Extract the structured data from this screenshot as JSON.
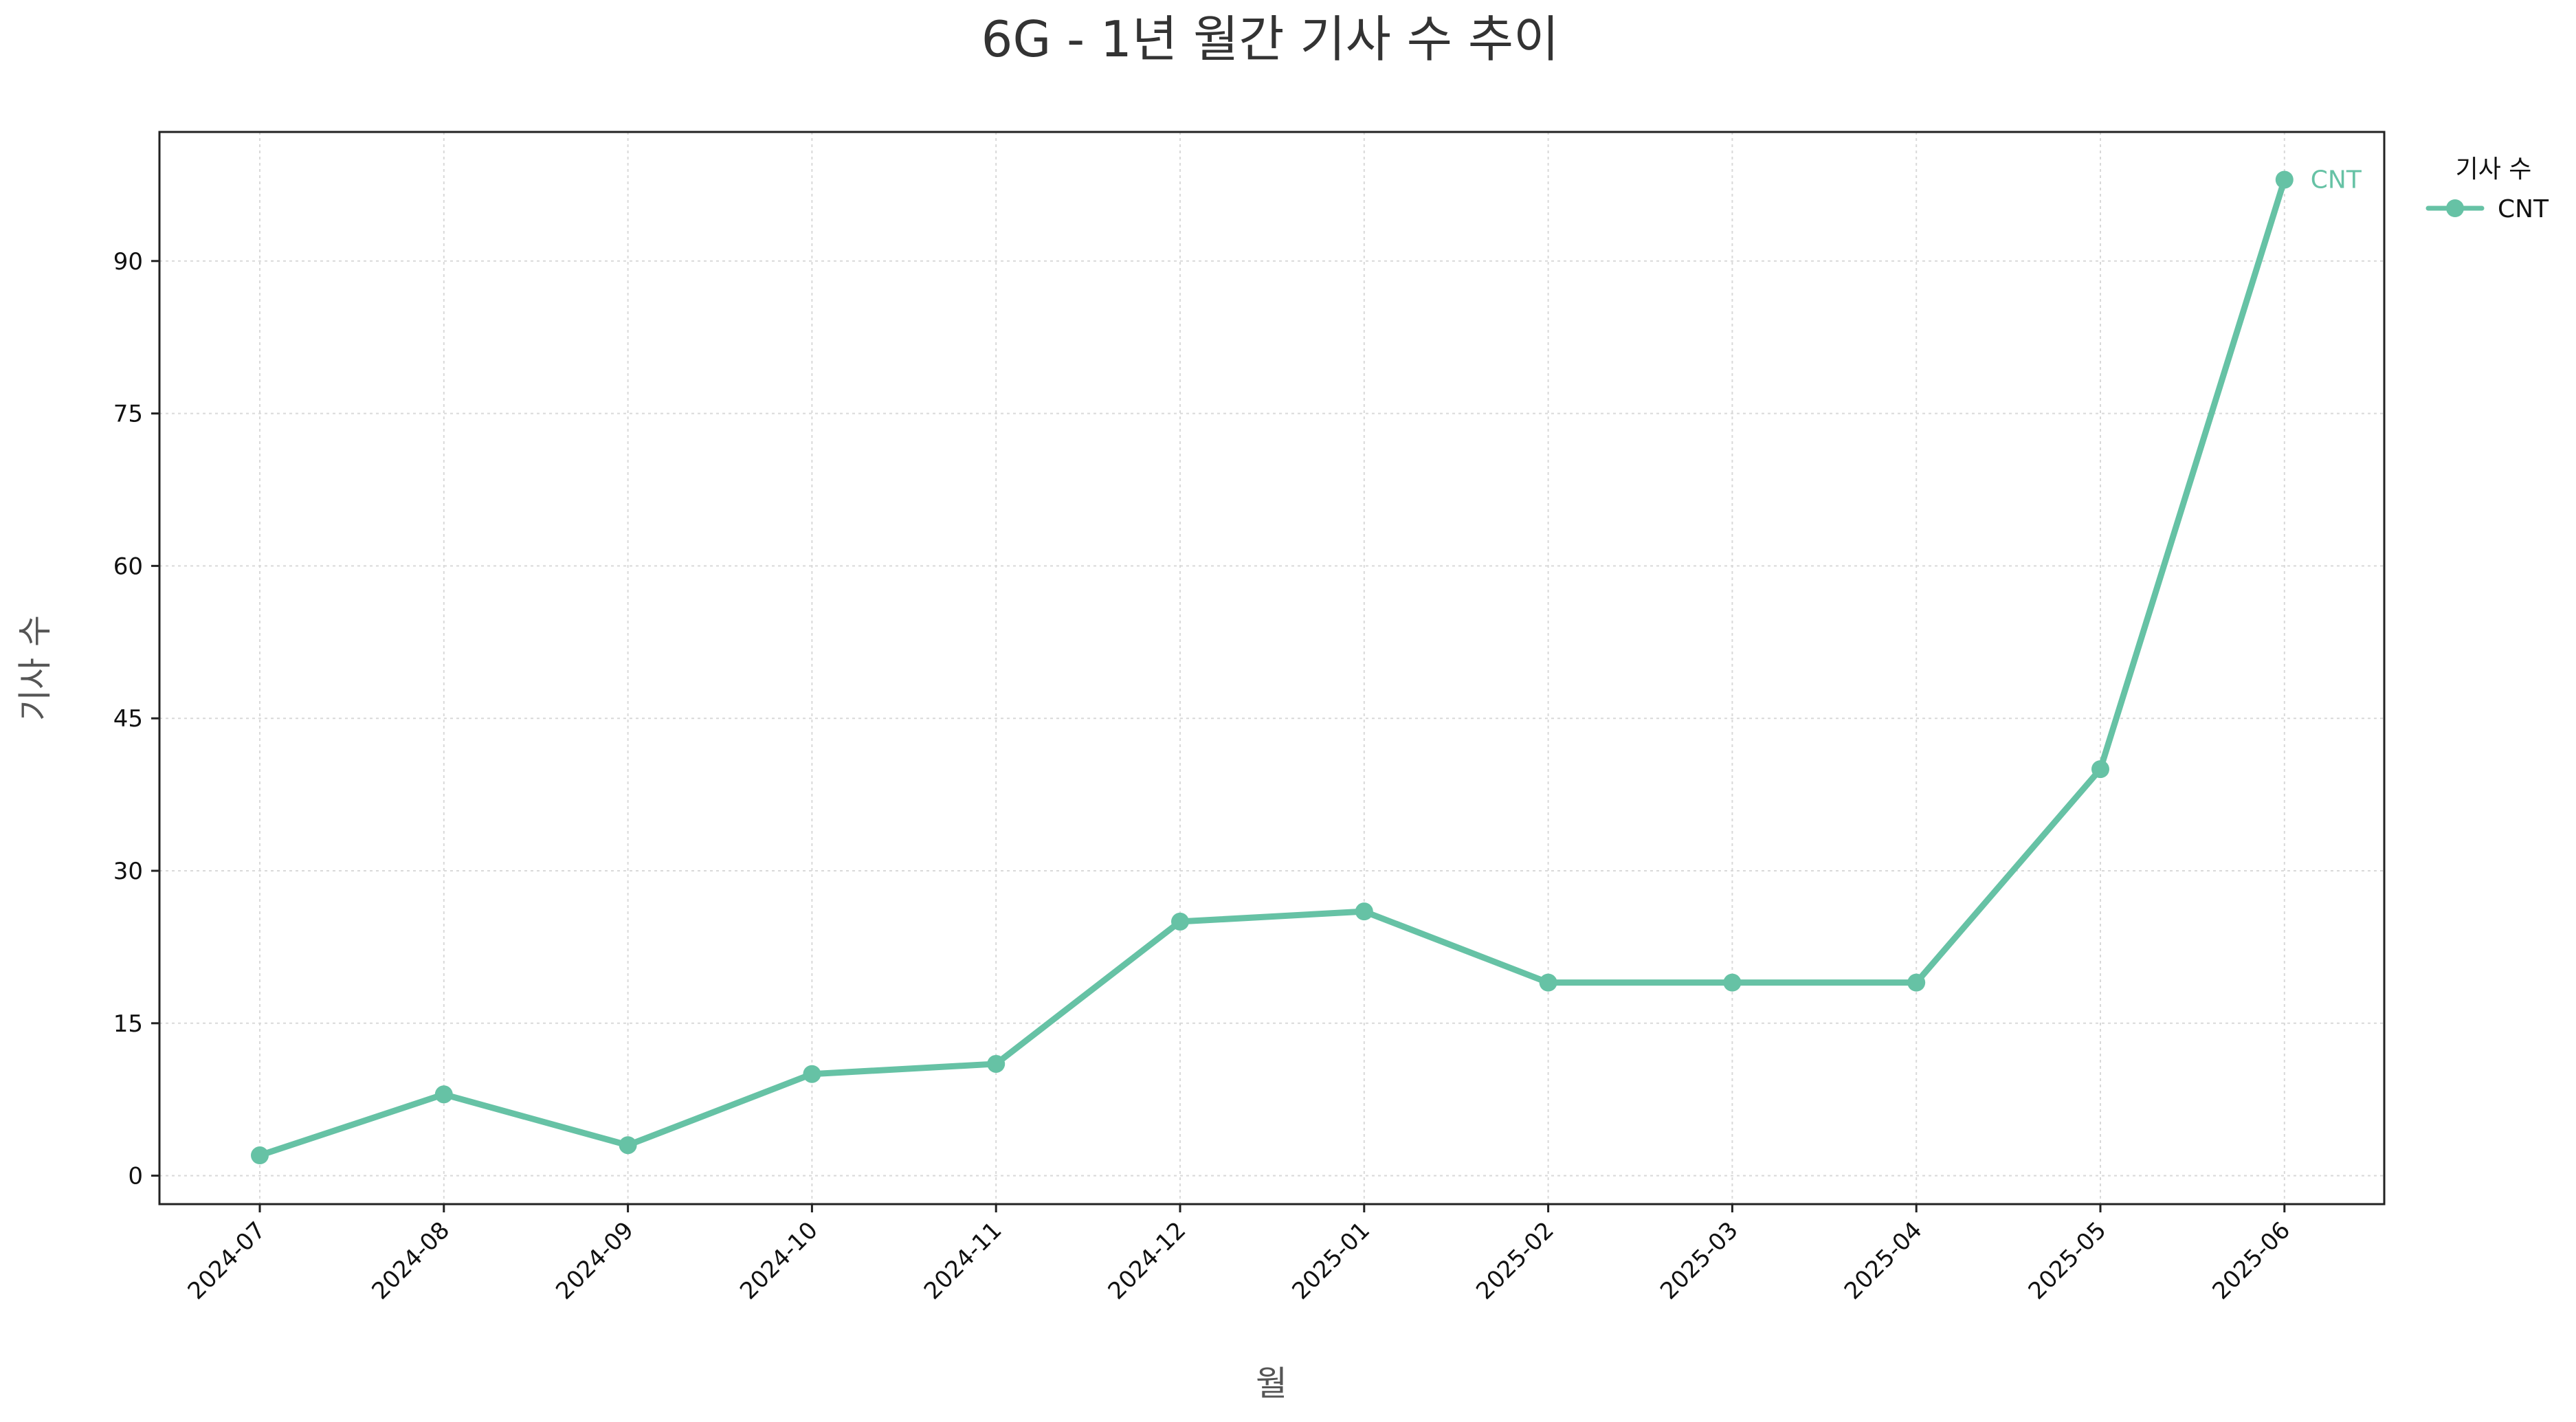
{
  "chart_data": {
    "type": "line",
    "title": "6G - 1년 월간 기사 수 추이",
    "xlabel": "월",
    "ylabel": "기사 수",
    "categories": [
      "2024-07",
      "2024-08",
      "2024-09",
      "2024-10",
      "2024-11",
      "2024-12",
      "2025-01",
      "2025-02",
      "2025-03",
      "2025-04",
      "2025-05",
      "2025-06"
    ],
    "series": [
      {
        "name": "CNT",
        "values": [
          2,
          8,
          3,
          10,
          11,
          25,
          26,
          19,
          19,
          19,
          40,
          98
        ],
        "color": "#66c2a5"
      }
    ],
    "yticks": [
      0,
      15,
      30,
      45,
      60,
      75,
      90
    ],
    "ytick_labels": [
      "0",
      "15",
      "30",
      "45",
      "60",
      "75",
      "90"
    ],
    "ylim": [
      -2.8,
      102.7
    ],
    "grid": true,
    "legend": {
      "title": "기사 수",
      "placement": "outside-top-right"
    },
    "end_label": "CNT"
  }
}
